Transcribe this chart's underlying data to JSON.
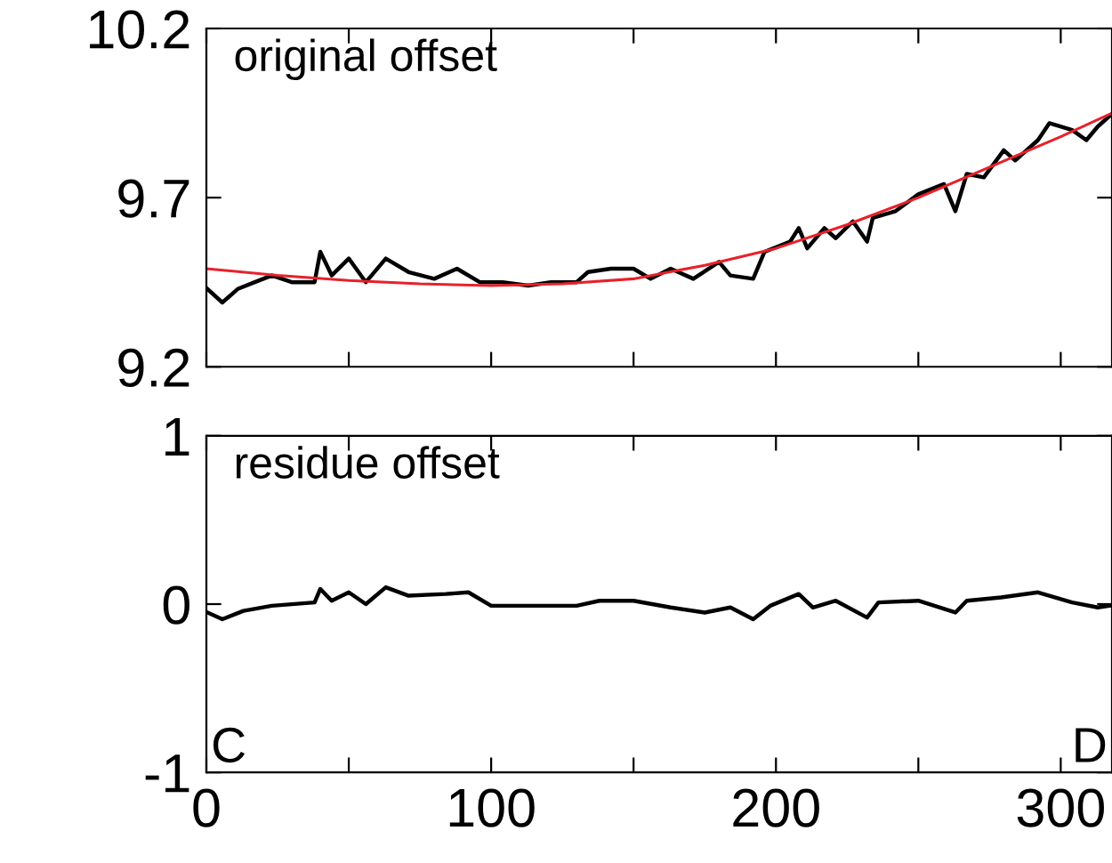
{
  "chart_data": [
    {
      "type": "line",
      "xlim": [
        0,
        318
      ],
      "ylim": [
        9.2,
        10.2
      ],
      "yticks": [
        9.2,
        9.7,
        10.2
      ],
      "xticks": [
        0,
        {
          "value": 50,
          "label": null
        },
        100,
        {
          "value": 150,
          "label": null
        },
        200,
        {
          "value": 250,
          "label": null
        },
        300
      ],
      "tick_labels": "y",
      "grid": false,
      "legend": false,
      "annotations": [
        "original offset"
      ],
      "series": [
        {
          "color": "#000000",
          "x": [
            0.4,
            5.6,
            11,
            17,
            23,
            30,
            38,
            40,
            44,
            50,
            56,
            63,
            71,
            80,
            88,
            96,
            104,
            113,
            121,
            130,
            134,
            142,
            150,
            156,
            163,
            171,
            180,
            184,
            192,
            196,
            205,
            208,
            211,
            217,
            221,
            227,
            232,
            234,
            242,
            250,
            259,
            263,
            267,
            273,
            280,
            284,
            292,
            296,
            304,
            309,
            313,
            317
          ],
          "values": [
            9.43,
            9.39,
            9.43,
            9.45,
            9.47,
            9.45,
            9.45,
            9.54,
            9.47,
            9.52,
            9.45,
            9.52,
            9.48,
            9.46,
            9.49,
            9.45,
            9.45,
            9.44,
            9.45,
            9.45,
            9.48,
            9.49,
            9.49,
            9.46,
            9.49,
            9.46,
            9.51,
            9.47,
            9.46,
            9.54,
            9.57,
            9.61,
            9.55,
            9.61,
            9.58,
            9.63,
            9.57,
            9.64,
            9.66,
            9.71,
            9.74,
            9.66,
            9.77,
            9.76,
            9.84,
            9.81,
            9.87,
            9.92,
            9.9,
            9.87,
            9.91,
            9.94
          ]
        },
        {
          "color": "#e8212b",
          "x": [
            0,
            25,
            50,
            75,
            100,
            125,
            150,
            175,
            200,
            225,
            250,
            275,
            300,
            318
          ],
          "values": [
            9.49,
            9.47,
            9.455,
            9.445,
            9.44,
            9.445,
            9.46,
            9.5,
            9.55,
            9.62,
            9.7,
            9.79,
            9.88,
            9.95
          ]
        }
      ]
    },
    {
      "type": "line",
      "xlim": [
        0,
        318
      ],
      "ylim": [
        -1,
        1
      ],
      "yticks": [
        -1,
        0,
        1
      ],
      "xticks": [
        0,
        {
          "value": 50,
          "label": null
        },
        100,
        {
          "value": 150,
          "label": null
        },
        200,
        {
          "value": 250,
          "label": null
        },
        300
      ],
      "grid": false,
      "legend": false,
      "annotations": [
        "residue offset",
        "C",
        "D"
      ],
      "series": [
        {
          "color": "#000000",
          "x": [
            0.4,
            5.6,
            13,
            23,
            38,
            40,
            44,
            50,
            56,
            63,
            71,
            84,
            92,
            100,
            113,
            130,
            138,
            150,
            163,
            175,
            184,
            192,
            198,
            208,
            213,
            221,
            232,
            236,
            250,
            263,
            267,
            279,
            292,
            304,
            313,
            317
          ],
          "values": [
            -0.05,
            -0.09,
            -0.04,
            -0.01,
            0.01,
            0.09,
            0.02,
            0.07,
            0,
            0.1,
            0.05,
            0.06,
            0.07,
            -0.01,
            -0.01,
            -0.01,
            0.02,
            0.02,
            -0.02,
            -0.05,
            -0.02,
            -0.09,
            -0.01,
            0.06,
            -0.02,
            0.02,
            -0.08,
            0.01,
            0.02,
            -0.05,
            0.02,
            0.04,
            0.07,
            0.01,
            -0.02,
            -0.01
          ]
        }
      ]
    }
  ]
}
